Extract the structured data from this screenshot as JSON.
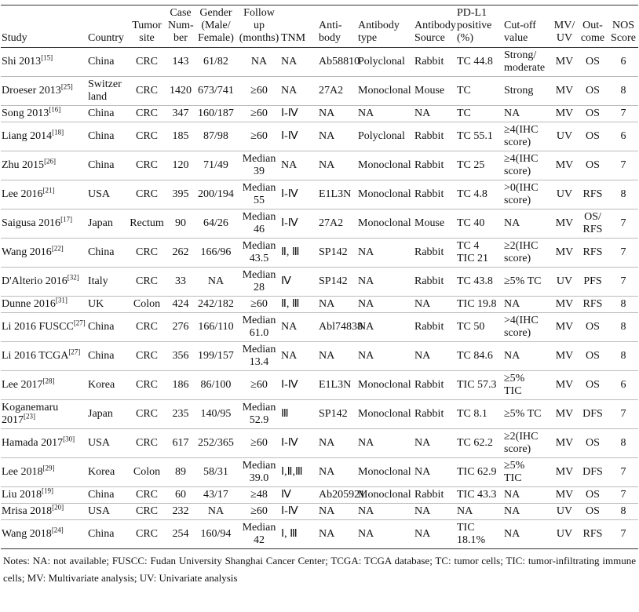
{
  "table": {
    "headers": [
      "Study",
      "Country",
      "Tumor\nsite",
      "Case\nNum-\nber",
      "Gender\n(Male/\nFemale)",
      "Follow\nup\n(months)",
      "TNM",
      "Anti-\nbody",
      "Antibody\ntype",
      "Antibody\nSource",
      "PD-L1\npositive\n(%)",
      "Cut-off\nvalue",
      "MV/\nUV",
      "Out-\ncome",
      "NOS\nScore"
    ],
    "rows": [
      [
        {
          "name": "Shi 2013",
          "ref": "[15]"
        },
        "China",
        "CRC",
        "143",
        "61/82",
        "NA",
        "NA",
        "Ab58810",
        "Polyclonal",
        "Rabbit",
        "TC 44.8",
        "Strong/\nmoderate",
        "MV",
        "OS",
        "6"
      ],
      [
        {
          "name": "Droeser 2013",
          "ref": "[25]"
        },
        "Switzer\nland",
        "CRC",
        "1420",
        "673/741",
        "≥60",
        "NA",
        "27A2",
        "Monoclonal",
        "Mouse",
        "TC",
        "Strong",
        "MV",
        "OS",
        "8"
      ],
      [
        {
          "name": "Song 2013",
          "ref": "[16]"
        },
        "China",
        "CRC",
        "347",
        "160/187",
        "≥60",
        "Ⅰ-Ⅳ",
        "NA",
        "NA",
        "NA",
        "TC",
        "NA",
        "MV",
        "OS",
        "7"
      ],
      [
        {
          "name": "Liang 2014",
          "ref": "[18]"
        },
        "China",
        "CRC",
        "185",
        "87/98",
        "≥60",
        "Ⅰ-Ⅳ",
        "NA",
        "Polyclonal",
        "Rabbit",
        "TC 55.1",
        "≥4(IHC\nscore)",
        "UV",
        "OS",
        "6"
      ],
      [
        {
          "name": "Zhu 2015",
          "ref": "[26]"
        },
        "China",
        "CRC",
        "120",
        "71/49",
        "Median\n39",
        "NA",
        "NA",
        "Monoclonal",
        "Rabbit",
        "TC 25",
        "≥4(IHC\nscore)",
        "MV",
        "OS",
        "7"
      ],
      [
        {
          "name": "Lee 2016",
          "ref": "[21]"
        },
        "USA",
        "CRC",
        "395",
        "200/194",
        "Median\n55",
        "Ⅰ-Ⅳ",
        "E1L3N",
        "Monoclonal",
        "Rabbit",
        "TC 4.8",
        ">0(IHC\nscore)",
        "UV",
        "RFS",
        "8"
      ],
      [
        {
          "name": "Saigusa 2016",
          "ref": "[17]"
        },
        "Japan",
        "Rectum",
        "90",
        "64/26",
        "Median\n46",
        "Ⅰ-Ⅳ",
        "27A2",
        "Monoclonal",
        "Mouse",
        "TC 40",
        "NA",
        "MV",
        "OS/\nRFS",
        "7"
      ],
      [
        {
          "name": "Wang 2016",
          "ref": "[22]"
        },
        "China",
        "CRC",
        "262",
        "166/96",
        "Median\n43.5",
        "Ⅱ, Ⅲ",
        "SP142",
        "NA",
        "Rabbit",
        "TC 4\nTIC 21",
        "≥2(IHC\nscore)",
        "MV",
        "RFS",
        "7"
      ],
      [
        {
          "name": "D'Alterio 2016",
          "ref": "[32]"
        },
        "Italy",
        "CRC",
        "33",
        "NA",
        "Median\n28",
        "Ⅳ",
        "SP142",
        "NA",
        "Rabbit",
        "TC 43.8",
        "≥5% TC",
        "UV",
        "PFS",
        "7"
      ],
      [
        {
          "name": "Dunne 2016",
          "ref": "[31]"
        },
        "UK",
        "Colon",
        "424",
        "242/182",
        "≥60",
        "Ⅱ, Ⅲ",
        "NA",
        "NA",
        "NA",
        "TIC 19.8",
        "NA",
        "MV",
        "RFS",
        "8"
      ],
      [
        {
          "name": "Li 2016 FUSCC",
          "ref": "[27]"
        },
        "China",
        "CRC",
        "276",
        "166/110",
        "Median\n61.0",
        "NA",
        "Abl74838",
        "NA",
        "Rabbit",
        "TC 50",
        ">4(IHC\nscore)",
        "MV",
        "OS",
        "8"
      ],
      [
        {
          "name": "Li 2016 TCGA",
          "ref": "[27]"
        },
        "China",
        "CRC",
        "356",
        "199/157",
        "Median\n13.4",
        "NA",
        "NA",
        "NA",
        "NA",
        "TC 84.6",
        "NA",
        "MV",
        "OS",
        "8"
      ],
      [
        {
          "name": "Lee 2017",
          "ref": "[28]"
        },
        "Korea",
        "CRC",
        "186",
        "86/100",
        "≥60",
        "Ⅰ-Ⅳ",
        "E1L3N",
        "Monoclonal",
        "Rabbit",
        "TIC 57.3",
        "≥5%\nTIC",
        "MV",
        "OS",
        "6"
      ],
      [
        {
          "name": "Koganemaru\n2017",
          "ref": "[23]"
        },
        "Japan",
        "CRC",
        "235",
        "140/95",
        "Median\n52.9",
        "Ⅲ",
        "SP142",
        "Monoclonal",
        "Rabbit",
        "TC  8.1",
        "≥5% TC",
        "MV",
        "DFS",
        "7"
      ],
      [
        {
          "name": "Hamada 2017",
          "ref": "[30]"
        },
        "USA",
        "CRC",
        "617",
        "252/365",
        "≥60",
        "Ⅰ-Ⅳ",
        "NA",
        "NA",
        "NA",
        "TC 62.2",
        "≥2(IHC\nscore)",
        "MV",
        "OS",
        "8"
      ],
      [
        {
          "name": "Lee 2018",
          "ref": "[29]"
        },
        "Korea",
        "Colon",
        "89",
        "58/31",
        "Median\n39.0",
        "Ⅰ,Ⅱ,Ⅲ",
        "NA",
        "Monoclonal",
        "NA",
        "TIC 62.9",
        "≥5%\nTIC",
        "MV",
        "DFS",
        "7"
      ],
      [
        {
          "name": "Liu 2018",
          "ref": "[19]"
        },
        "China",
        "CRC",
        "60",
        "43/17",
        "≥48",
        "Ⅳ",
        "Ab205921",
        "Monoclonal",
        "Rabbit",
        "TIC 43.3",
        "NA",
        "MV",
        "OS",
        "7"
      ],
      [
        {
          "name": "Mrisa 2018",
          "ref": "[20]"
        },
        "USA",
        "CRC",
        "232",
        "NA",
        "≥60",
        "Ⅰ-Ⅳ",
        "NA",
        "NA",
        "NA",
        "NA",
        "NA",
        "UV",
        "OS",
        "8"
      ],
      [
        {
          "name": "Wang 2018",
          "ref": "[24]"
        },
        "China",
        "CRC",
        "254",
        "160/94",
        "Median\n42",
        "Ⅰ, Ⅲ",
        "NA",
        "NA",
        "NA",
        "TIC\n18.1%",
        "NA",
        "UV",
        "RFS",
        "7"
      ]
    ]
  },
  "notes": "Notes: NA: not available; FUSCC: Fudan University Shanghai Cancer Center; TCGA: TCGA database; TC: tumor cells; TIC: tumor-infiltrating immune cells; MV: Multivariate analysis; UV: Univariate analysis"
}
